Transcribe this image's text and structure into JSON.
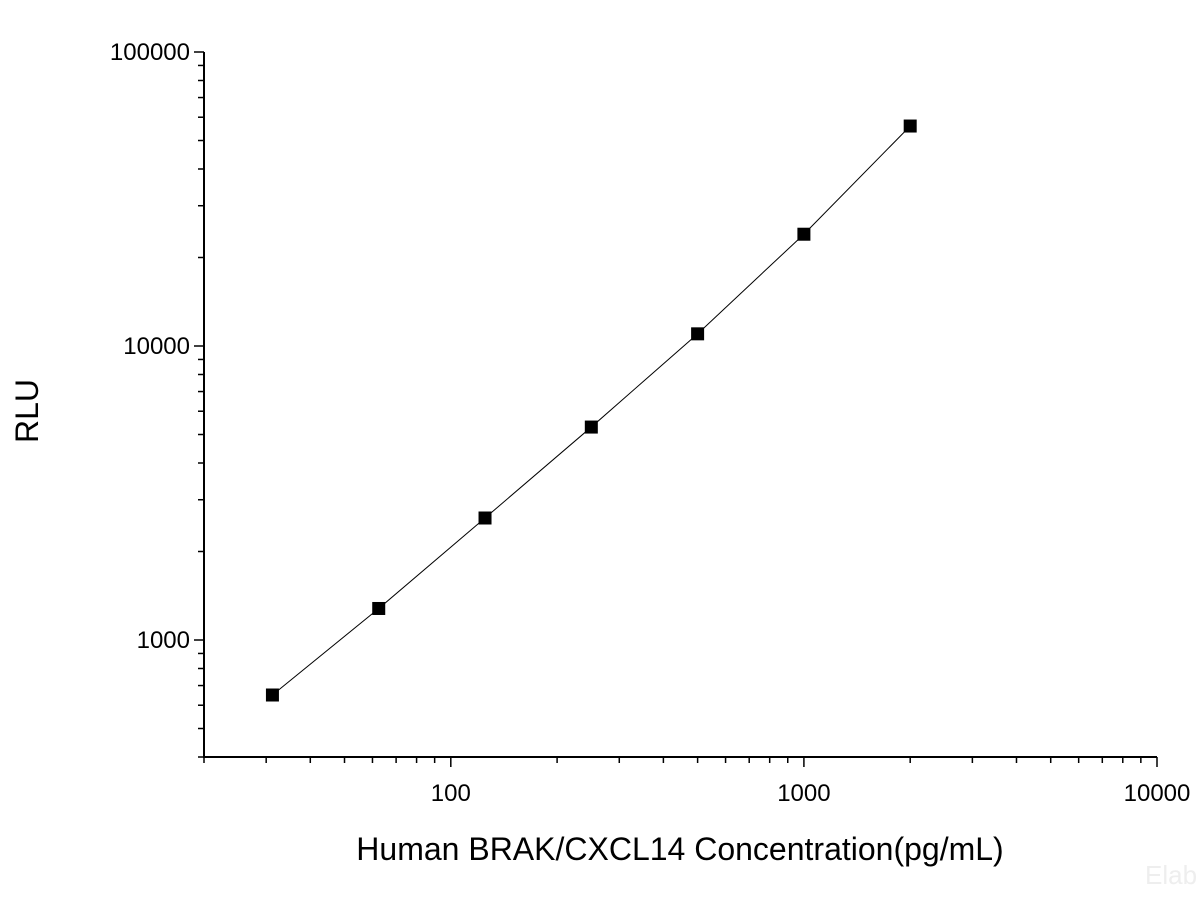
{
  "chart_data": {
    "type": "scatter",
    "xlabel": "Human BRAK/CXCL14 Concentration(pg/mL)",
    "ylabel": "RLU",
    "x_scale": "log",
    "y_scale": "log",
    "xlim": [
      20,
      10000
    ],
    "ylim": [
      400,
      100000
    ],
    "x_ticks": [
      "100",
      "1000",
      "10000"
    ],
    "y_ticks": [
      "1000",
      "10000",
      "100000"
    ],
    "grid": false,
    "legend": "none",
    "line_color": "#000000",
    "marker_color": "#000000",
    "marker": "square",
    "series": [
      {
        "x": [
          31.25,
          62.5,
          125,
          250,
          500,
          1000,
          2000
        ],
        "y": [
          650,
          1280,
          2600,
          5300,
          11000,
          24000,
          56000
        ]
      }
    ],
    "watermark": "Elab"
  }
}
